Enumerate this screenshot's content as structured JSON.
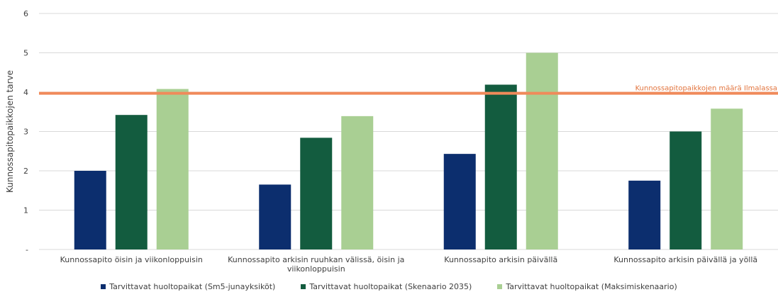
{
  "chart_data": {
    "type": "bar",
    "ylabel": "Kunnossapitopaikkojen tarve",
    "ylim": [
      0,
      6
    ],
    "yticks": [
      "-",
      "1",
      "2",
      "3",
      "4",
      "5",
      "6"
    ],
    "grid": true,
    "legend_position": "bottom",
    "categories": [
      [
        "Kunnossapito öisin ja viikonloppuisin"
      ],
      [
        "Kunnossapito arkisin ruuhkan välissä, öisin ja",
        "viikonloppuisin"
      ],
      [
        "Kunnossapito arkisin päivällä"
      ],
      [
        "Kunnossapito arkisin päivällä ja yöllä"
      ]
    ],
    "series": [
      {
        "name": "Tarvittavat huoltopaikat (Sm5-junayksiköt)",
        "color": "#0c2e6e",
        "values": [
          2.0,
          1.65,
          2.43,
          1.75
        ]
      },
      {
        "name": "Tarvittavat huoltopaikat (Skenaario 2035)",
        "color": "#135c3f",
        "values": [
          3.42,
          2.84,
          4.19,
          3.0
        ]
      },
      {
        "name": "Tarvittavat huoltopaikat (Maksimiskenaario)",
        "color": "#a9cf93",
        "values": [
          4.08,
          3.39,
          5.0,
          3.58
        ]
      }
    ],
    "reference_line": {
      "value": 3.97,
      "label": "Kunnossapitopaikkojen määrä Ilmalassa",
      "color": "#f08a5a"
    }
  }
}
